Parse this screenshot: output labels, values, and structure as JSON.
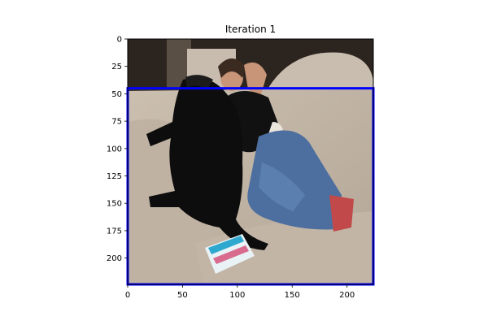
{
  "chart_data": {
    "type": "image",
    "title": "Iteration 1",
    "xlim": [
      0,
      224
    ],
    "ylim": [
      224,
      0
    ],
    "x_ticks": [
      0,
      50,
      100,
      150,
      200
    ],
    "y_ticks": [
      0,
      25,
      50,
      75,
      100,
      125,
      150,
      175,
      200
    ],
    "bounding_box": {
      "x0": 0,
      "y0": 45,
      "x1": 224,
      "y1": 224,
      "color": "#0000ff"
    },
    "image_content": "photo-woman-with-black-dog-on-couch"
  }
}
